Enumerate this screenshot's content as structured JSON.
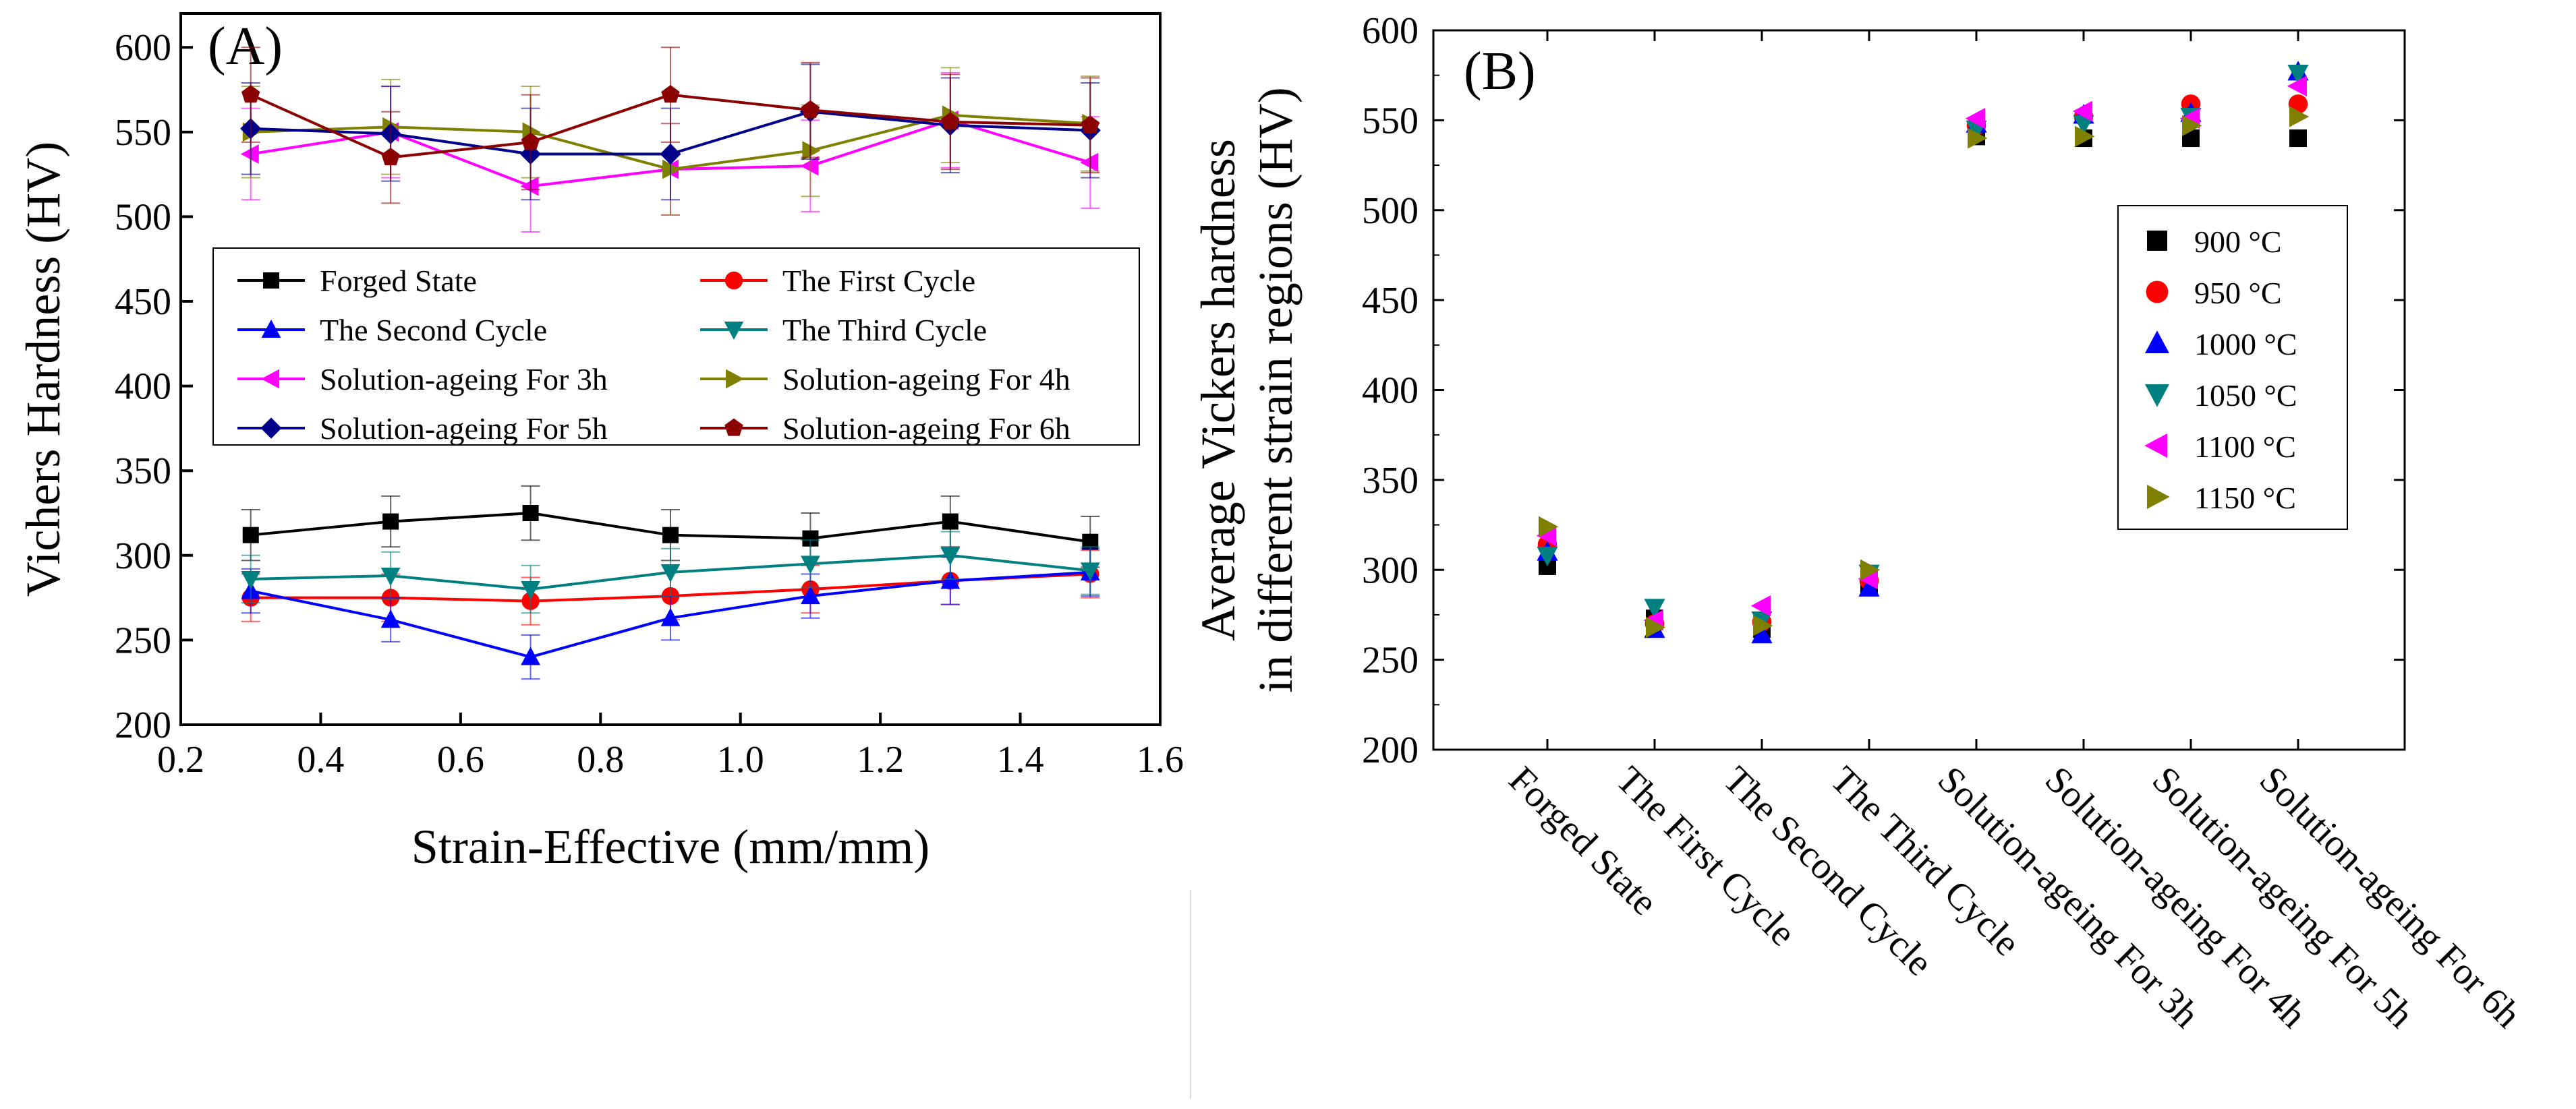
{
  "chart_data": [
    {
      "type": "line",
      "panel_label": "(A)",
      "xlabel": "Strain-Effective (mm/mm)",
      "ylabel": "Vichers Hardness (HV)",
      "xlim": [
        0.2,
        1.6
      ],
      "ylim": [
        200,
        620
      ],
      "xticks": [
        0.2,
        0.4,
        0.6,
        0.8,
        1.0,
        1.2,
        1.4,
        1.6
      ],
      "xtick_labels": [
        "0.2",
        "0.4",
        "0.6",
        "0.8",
        "1.0",
        "1.2",
        "1.4",
        "1.6"
      ],
      "yticks": [
        200,
        250,
        300,
        350,
        400,
        450,
        500,
        550,
        600
      ],
      "ytick_labels": [
        "200",
        "250",
        "300",
        "350",
        "400",
        "450",
        "500",
        "550",
        "600"
      ],
      "x": [
        0.3,
        0.5,
        0.7,
        0.9,
        1.1,
        1.3,
        1.5
      ],
      "legend_placement": "center (two columns)",
      "series": [
        {
          "name": "Forged State",
          "color": "#000000",
          "marker": "square",
          "values": [
            312,
            320,
            325,
            312,
            310,
            320,
            308
          ],
          "errors": [
            15,
            15,
            16,
            15,
            15,
            15,
            15
          ]
        },
        {
          "name": "The First Cycle",
          "color": "#ff0000",
          "marker": "circle",
          "values": [
            275,
            275,
            273,
            276,
            280,
            285,
            289
          ],
          "errors": [
            14,
            14,
            14,
            14,
            14,
            14,
            14
          ]
        },
        {
          "name": "The Second Cycle",
          "color": "#0000ff",
          "marker": "triangle-up",
          "values": [
            279,
            262,
            240,
            263,
            276,
            285,
            290
          ],
          "errors": [
            13,
            13,
            13,
            13,
            13,
            14,
            14
          ]
        },
        {
          "name": "The Third Cycle",
          "color": "#008080",
          "marker": "triangle-down",
          "values": [
            286,
            288,
            280,
            290,
            295,
            300,
            291
          ],
          "errors": [
            14,
            14,
            14,
            14,
            14,
            14,
            14
          ]
        },
        {
          "name": "Solution-ageing For 3h",
          "color": "#ff00ff",
          "marker": "triangle-left",
          "values": [
            537,
            550,
            518,
            528,
            530,
            557,
            532
          ],
          "errors": [
            27,
            27,
            27,
            27,
            27,
            28,
            27
          ]
        },
        {
          "name": "Solution-ageing For 4h",
          "color": "#808000",
          "marker": "triangle-right",
          "values": [
            550,
            553,
            550,
            528,
            539,
            560,
            555
          ],
          "errors": [
            27,
            28,
            27,
            27,
            27,
            28,
            28
          ]
        },
        {
          "name": "Solution-ageing For 5h",
          "color": "#00008b",
          "marker": "diamond",
          "values": [
            552,
            549,
            537,
            537,
            562,
            554,
            551
          ],
          "errors": [
            27,
            28,
            27,
            27,
            28,
            28,
            28
          ]
        },
        {
          "name": "Solution-ageing For 6h",
          "color": "#8b0000",
          "marker": "pentagon",
          "values": [
            572,
            535,
            544,
            572,
            563,
            556,
            554
          ],
          "errors": [
            28,
            27,
            28,
            28,
            28,
            28,
            28
          ]
        }
      ]
    },
    {
      "type": "scatter",
      "panel_label": "(B)",
      "xlabel": "",
      "ylabel_line1": "Average Vickers hardness",
      "ylabel_line2": "in different strain regions (HV)",
      "ylim": [
        200,
        600
      ],
      "yticks": [
        200,
        250,
        300,
        350,
        400,
        450,
        500,
        550,
        600
      ],
      "ytick_labels": [
        "200",
        "250",
        "300",
        "350",
        "400",
        "450",
        "500",
        "550",
        "600"
      ],
      "categories": [
        "Forged State",
        "The First Cycle",
        "The Second Cycle",
        "The Third Cycle",
        "Solution-ageing For 3h",
        "Solution-ageing For 4h",
        "Solution-ageing For 5h",
        "Solution-ageing For 6h"
      ],
      "legend_placement": "right",
      "series": [
        {
          "name": "900 °C",
          "color": "#000000",
          "marker": "square",
          "values": [
            302,
            273,
            267,
            292,
            541,
            540,
            540,
            540
          ]
        },
        {
          "name": "950 °C",
          "color": "#ff0000",
          "marker": "circle",
          "values": [
            314,
            270,
            271,
            294,
            547,
            552,
            559,
            559
          ]
        },
        {
          "name": "1000 °C",
          "color": "#0000ff",
          "marker": "triangle-up",
          "values": [
            310,
            267,
            264,
            290,
            548,
            553,
            554,
            577
          ]
        },
        {
          "name": "1050 °C",
          "color": "#008080",
          "marker": "triangle-down",
          "values": [
            308,
            279,
            272,
            298,
            545,
            548,
            552,
            576
          ]
        },
        {
          "name": "1100 °C",
          "color": "#ff00ff",
          "marker": "triangle-left",
          "values": [
            319,
            272,
            280,
            295,
            551,
            555,
            551,
            569
          ]
        },
        {
          "name": "1150 °C",
          "color": "#808000",
          "marker": "triangle-right",
          "values": [
            324,
            268,
            269,
            300,
            540,
            541,
            547,
            552
          ]
        }
      ]
    }
  ]
}
